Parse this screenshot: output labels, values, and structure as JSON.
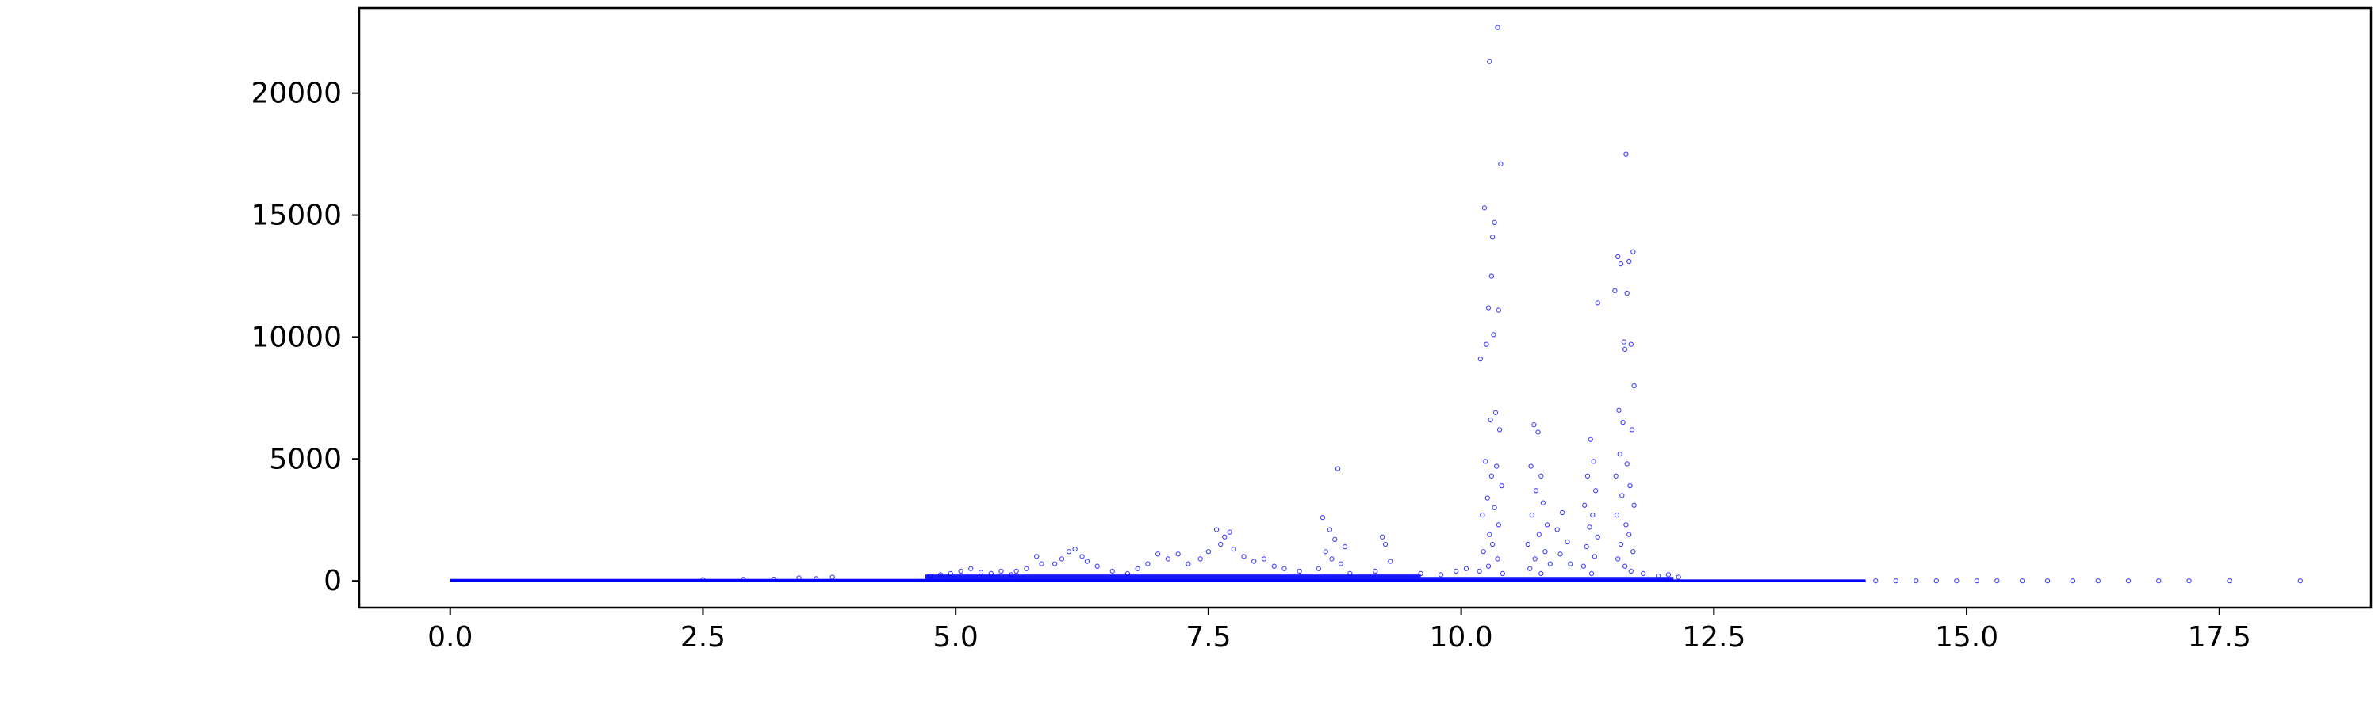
{
  "chart_data": {
    "type": "scatter",
    "title": "",
    "xlabel": "",
    "ylabel": "",
    "xlim": [
      -0.9,
      19.0
    ],
    "ylim": [
      -1100,
      23500
    ],
    "x_ticks": [
      0.0,
      2.5,
      5.0,
      7.5,
      10.0,
      12.5,
      15.0,
      17.5
    ],
    "x_tick_labels": [
      "0.0",
      "2.5",
      "5.0",
      "7.5",
      "10.0",
      "12.5",
      "15.0",
      "17.5"
    ],
    "y_ticks": [
      0,
      5000,
      10000,
      15000,
      20000
    ],
    "y_tick_labels": [
      "0",
      "5000",
      "10000",
      "15000",
      "20000"
    ],
    "grid": false,
    "legend": "none",
    "marker": "small hollow circle",
    "color": "#0000ff",
    "series": [
      {
        "points": [
          [
            10.36,
            22700
          ],
          [
            10.28,
            21300
          ],
          [
            10.39,
            17100
          ],
          [
            10.23,
            15300
          ],
          [
            10.33,
            14700
          ],
          [
            10.31,
            14100
          ],
          [
            10.3,
            12500
          ],
          [
            10.27,
            11200
          ],
          [
            10.37,
            11100
          ],
          [
            10.25,
            9700
          ],
          [
            10.19,
            9100
          ],
          [
            10.32,
            10100
          ],
          [
            10.34,
            6900
          ],
          [
            10.29,
            6600
          ],
          [
            10.38,
            6200
          ],
          [
            10.24,
            4900
          ],
          [
            10.35,
            4700
          ],
          [
            10.3,
            4300
          ],
          [
            10.4,
            3900
          ],
          [
            10.26,
            3400
          ],
          [
            10.33,
            3000
          ],
          [
            10.21,
            2700
          ],
          [
            10.37,
            2300
          ],
          [
            10.28,
            1900
          ],
          [
            10.31,
            1500
          ],
          [
            10.22,
            1200
          ],
          [
            10.36,
            900
          ],
          [
            10.27,
            600
          ],
          [
            10.18,
            400
          ],
          [
            10.41,
            300
          ],
          [
            11.63,
            17500
          ],
          [
            11.7,
            13500
          ],
          [
            11.55,
            13300
          ],
          [
            11.66,
            13100
          ],
          [
            11.58,
            13000
          ],
          [
            11.64,
            11800
          ],
          [
            11.52,
            11900
          ],
          [
            11.35,
            11400
          ],
          [
            11.61,
            9800
          ],
          [
            11.68,
            9700
          ],
          [
            11.62,
            9500
          ],
          [
            11.71,
            8000
          ],
          [
            11.56,
            7000
          ],
          [
            11.6,
            6500
          ],
          [
            11.69,
            6200
          ],
          [
            11.57,
            5200
          ],
          [
            11.64,
            4800
          ],
          [
            11.53,
            4300
          ],
          [
            11.67,
            3900
          ],
          [
            11.59,
            3500
          ],
          [
            11.71,
            3100
          ],
          [
            11.54,
            2700
          ],
          [
            11.63,
            2300
          ],
          [
            11.66,
            1900
          ],
          [
            11.58,
            1500
          ],
          [
            11.7,
            1200
          ],
          [
            11.55,
            900
          ],
          [
            11.62,
            600
          ],
          [
            11.68,
            400
          ],
          [
            11.28,
            5800
          ],
          [
            11.31,
            4900
          ],
          [
            11.25,
            4300
          ],
          [
            11.33,
            3700
          ],
          [
            11.22,
            3100
          ],
          [
            11.3,
            2700
          ],
          [
            11.27,
            2200
          ],
          [
            11.35,
            1800
          ],
          [
            11.24,
            1400
          ],
          [
            11.32,
            1000
          ],
          [
            11.21,
            600
          ],
          [
            11.29,
            300
          ],
          [
            10.72,
            6400
          ],
          [
            10.76,
            6100
          ],
          [
            10.69,
            4700
          ],
          [
            10.79,
            4300
          ],
          [
            10.74,
            3700
          ],
          [
            10.81,
            3200
          ],
          [
            10.7,
            2700
          ],
          [
            10.85,
            2300
          ],
          [
            10.77,
            1900
          ],
          [
            10.66,
            1500
          ],
          [
            10.83,
            1200
          ],
          [
            10.73,
            900
          ],
          [
            10.88,
            700
          ],
          [
            10.68,
            500
          ],
          [
            10.79,
            300
          ],
          [
            11.0,
            2800
          ],
          [
            10.95,
            2100
          ],
          [
            11.05,
            1600
          ],
          [
            10.98,
            1100
          ],
          [
            11.08,
            700
          ],
          [
            8.78,
            4600
          ],
          [
            8.63,
            2600
          ],
          [
            8.7,
            2100
          ],
          [
            8.75,
            1700
          ],
          [
            8.85,
            1400
          ],
          [
            8.66,
            1200
          ],
          [
            8.72,
            900
          ],
          [
            8.81,
            700
          ],
          [
            8.59,
            500
          ],
          [
            8.9,
            300
          ],
          [
            9.22,
            1800
          ],
          [
            9.25,
            1500
          ],
          [
            9.3,
            800
          ],
          [
            9.15,
            400
          ],
          [
            7.71,
            2000
          ],
          [
            7.66,
            1800
          ],
          [
            7.58,
            2100
          ],
          [
            7.62,
            1500
          ],
          [
            7.75,
            1300
          ],
          [
            7.5,
            1200
          ],
          [
            7.85,
            1000
          ],
          [
            7.42,
            900
          ],
          [
            7.95,
            800
          ],
          [
            7.3,
            700
          ],
          [
            8.05,
            900
          ],
          [
            8.15,
            600
          ],
          [
            8.25,
            500
          ],
          [
            7.2,
            1100
          ],
          [
            7.1,
            900
          ],
          [
            7.0,
            1100
          ],
          [
            6.9,
            700
          ],
          [
            6.8,
            500
          ],
          [
            8.4,
            400
          ],
          [
            6.18,
            1300
          ],
          [
            6.12,
            1200
          ],
          [
            6.25,
            1000
          ],
          [
            6.05,
            900
          ],
          [
            6.3,
            800
          ],
          [
            5.98,
            700
          ],
          [
            6.4,
            600
          ],
          [
            5.8,
            1000
          ],
          [
            5.85,
            700
          ],
          [
            5.7,
            500
          ],
          [
            6.55,
            400
          ],
          [
            6.7,
            300
          ],
          [
            5.6,
            400
          ],
          [
            5.05,
            400
          ],
          [
            5.15,
            500
          ],
          [
            4.95,
            300
          ],
          [
            5.25,
            350
          ],
          [
            5.35,
            300
          ],
          [
            5.45,
            400
          ],
          [
            5.55,
            250
          ],
          [
            4.85,
            250
          ],
          [
            4.75,
            200
          ],
          [
            3.45,
            120
          ],
          [
            3.78,
            150
          ],
          [
            3.62,
            90
          ],
          [
            3.2,
            70
          ],
          [
            2.9,
            60
          ],
          [
            2.5,
            50
          ],
          [
            9.6,
            300
          ],
          [
            9.8,
            250
          ],
          [
            9.95,
            400
          ],
          [
            10.05,
            500
          ],
          [
            11.8,
            300
          ],
          [
            11.95,
            200
          ],
          [
            12.05,
            250
          ],
          [
            12.15,
            150
          ],
          [
            14.1,
            0
          ],
          [
            14.3,
            0
          ],
          [
            14.5,
            0
          ],
          [
            14.7,
            0
          ],
          [
            14.9,
            0
          ],
          [
            15.1,
            0
          ],
          [
            15.3,
            0
          ],
          [
            15.55,
            0
          ],
          [
            15.8,
            0
          ],
          [
            16.05,
            0
          ],
          [
            16.3,
            0
          ],
          [
            16.6,
            0
          ],
          [
            16.9,
            0
          ],
          [
            17.2,
            0
          ],
          [
            17.6,
            0
          ],
          [
            18.3,
            0
          ]
        ]
      }
    ],
    "bands": [
      {
        "x_start": 0.0,
        "x_end": 4.7,
        "y_low": -60,
        "y_high": 80
      },
      {
        "x_start": 4.7,
        "x_end": 9.6,
        "y_low": -60,
        "y_high": 260
      },
      {
        "x_start": 9.6,
        "x_end": 12.1,
        "y_low": -60,
        "y_high": 160
      },
      {
        "x_start": 12.1,
        "x_end": 14.0,
        "y_low": -40,
        "y_high": 40
      }
    ]
  }
}
